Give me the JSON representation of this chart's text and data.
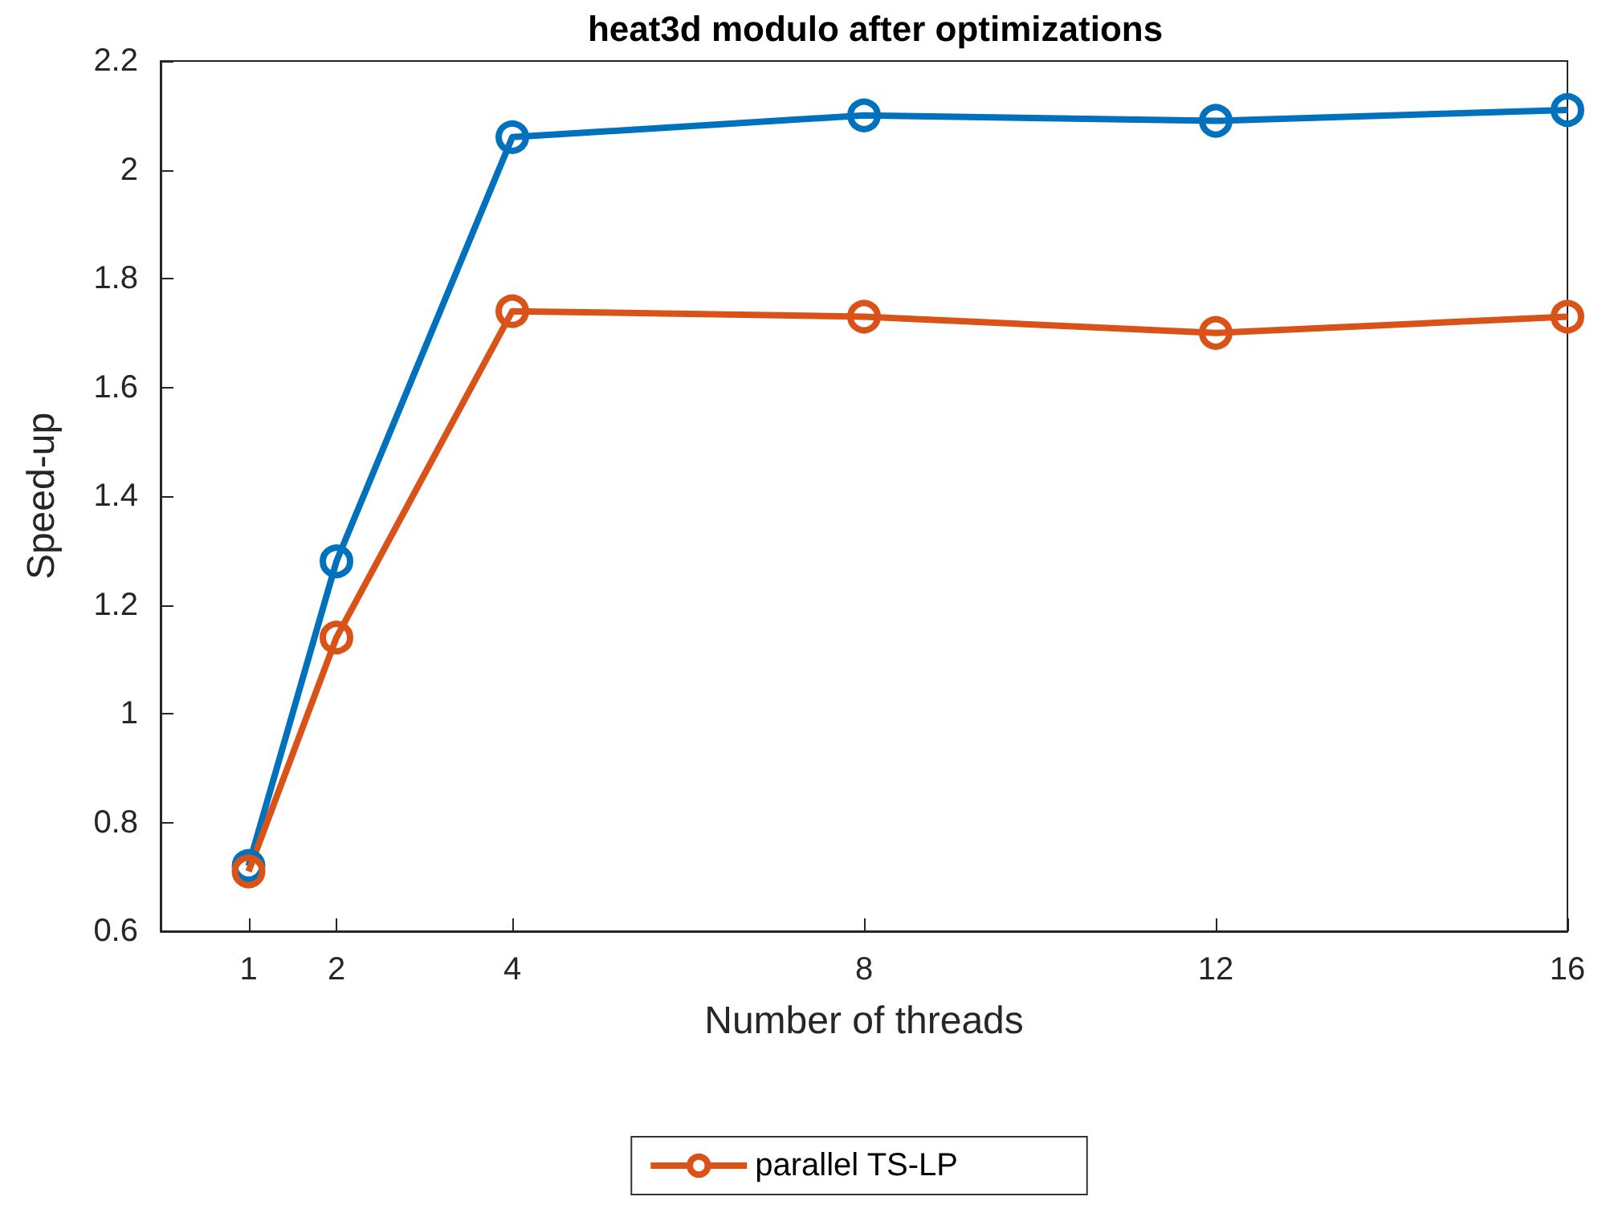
{
  "chart_data": {
    "type": "line",
    "title": "heat3d modulo after optimizations",
    "xlabel": "Number of threads",
    "ylabel": "Speed-up",
    "x": [
      1,
      2,
      4,
      8,
      12,
      16
    ],
    "series": [
      {
        "color": "#0072bd",
        "values": [
          0.72,
          1.28,
          2.06,
          2.1,
          2.09,
          2.11
        ]
      },
      {
        "name": "parallel TS-LP",
        "color": "#d95319",
        "values": [
          0.71,
          1.14,
          1.74,
          1.73,
          1.7,
          1.73
        ]
      }
    ],
    "xlim": [
      0,
      16
    ],
    "xticks": [
      1,
      2,
      4,
      8,
      12,
      16
    ],
    "ylim": [
      0.6,
      2.2
    ],
    "yticks": [
      0.6,
      0.8,
      1,
      1.2,
      1.4,
      1.6,
      1.8,
      2,
      2.2
    ],
    "grid": false,
    "legend": "bottom",
    "marker": "circle",
    "line_style": "solid"
  }
}
